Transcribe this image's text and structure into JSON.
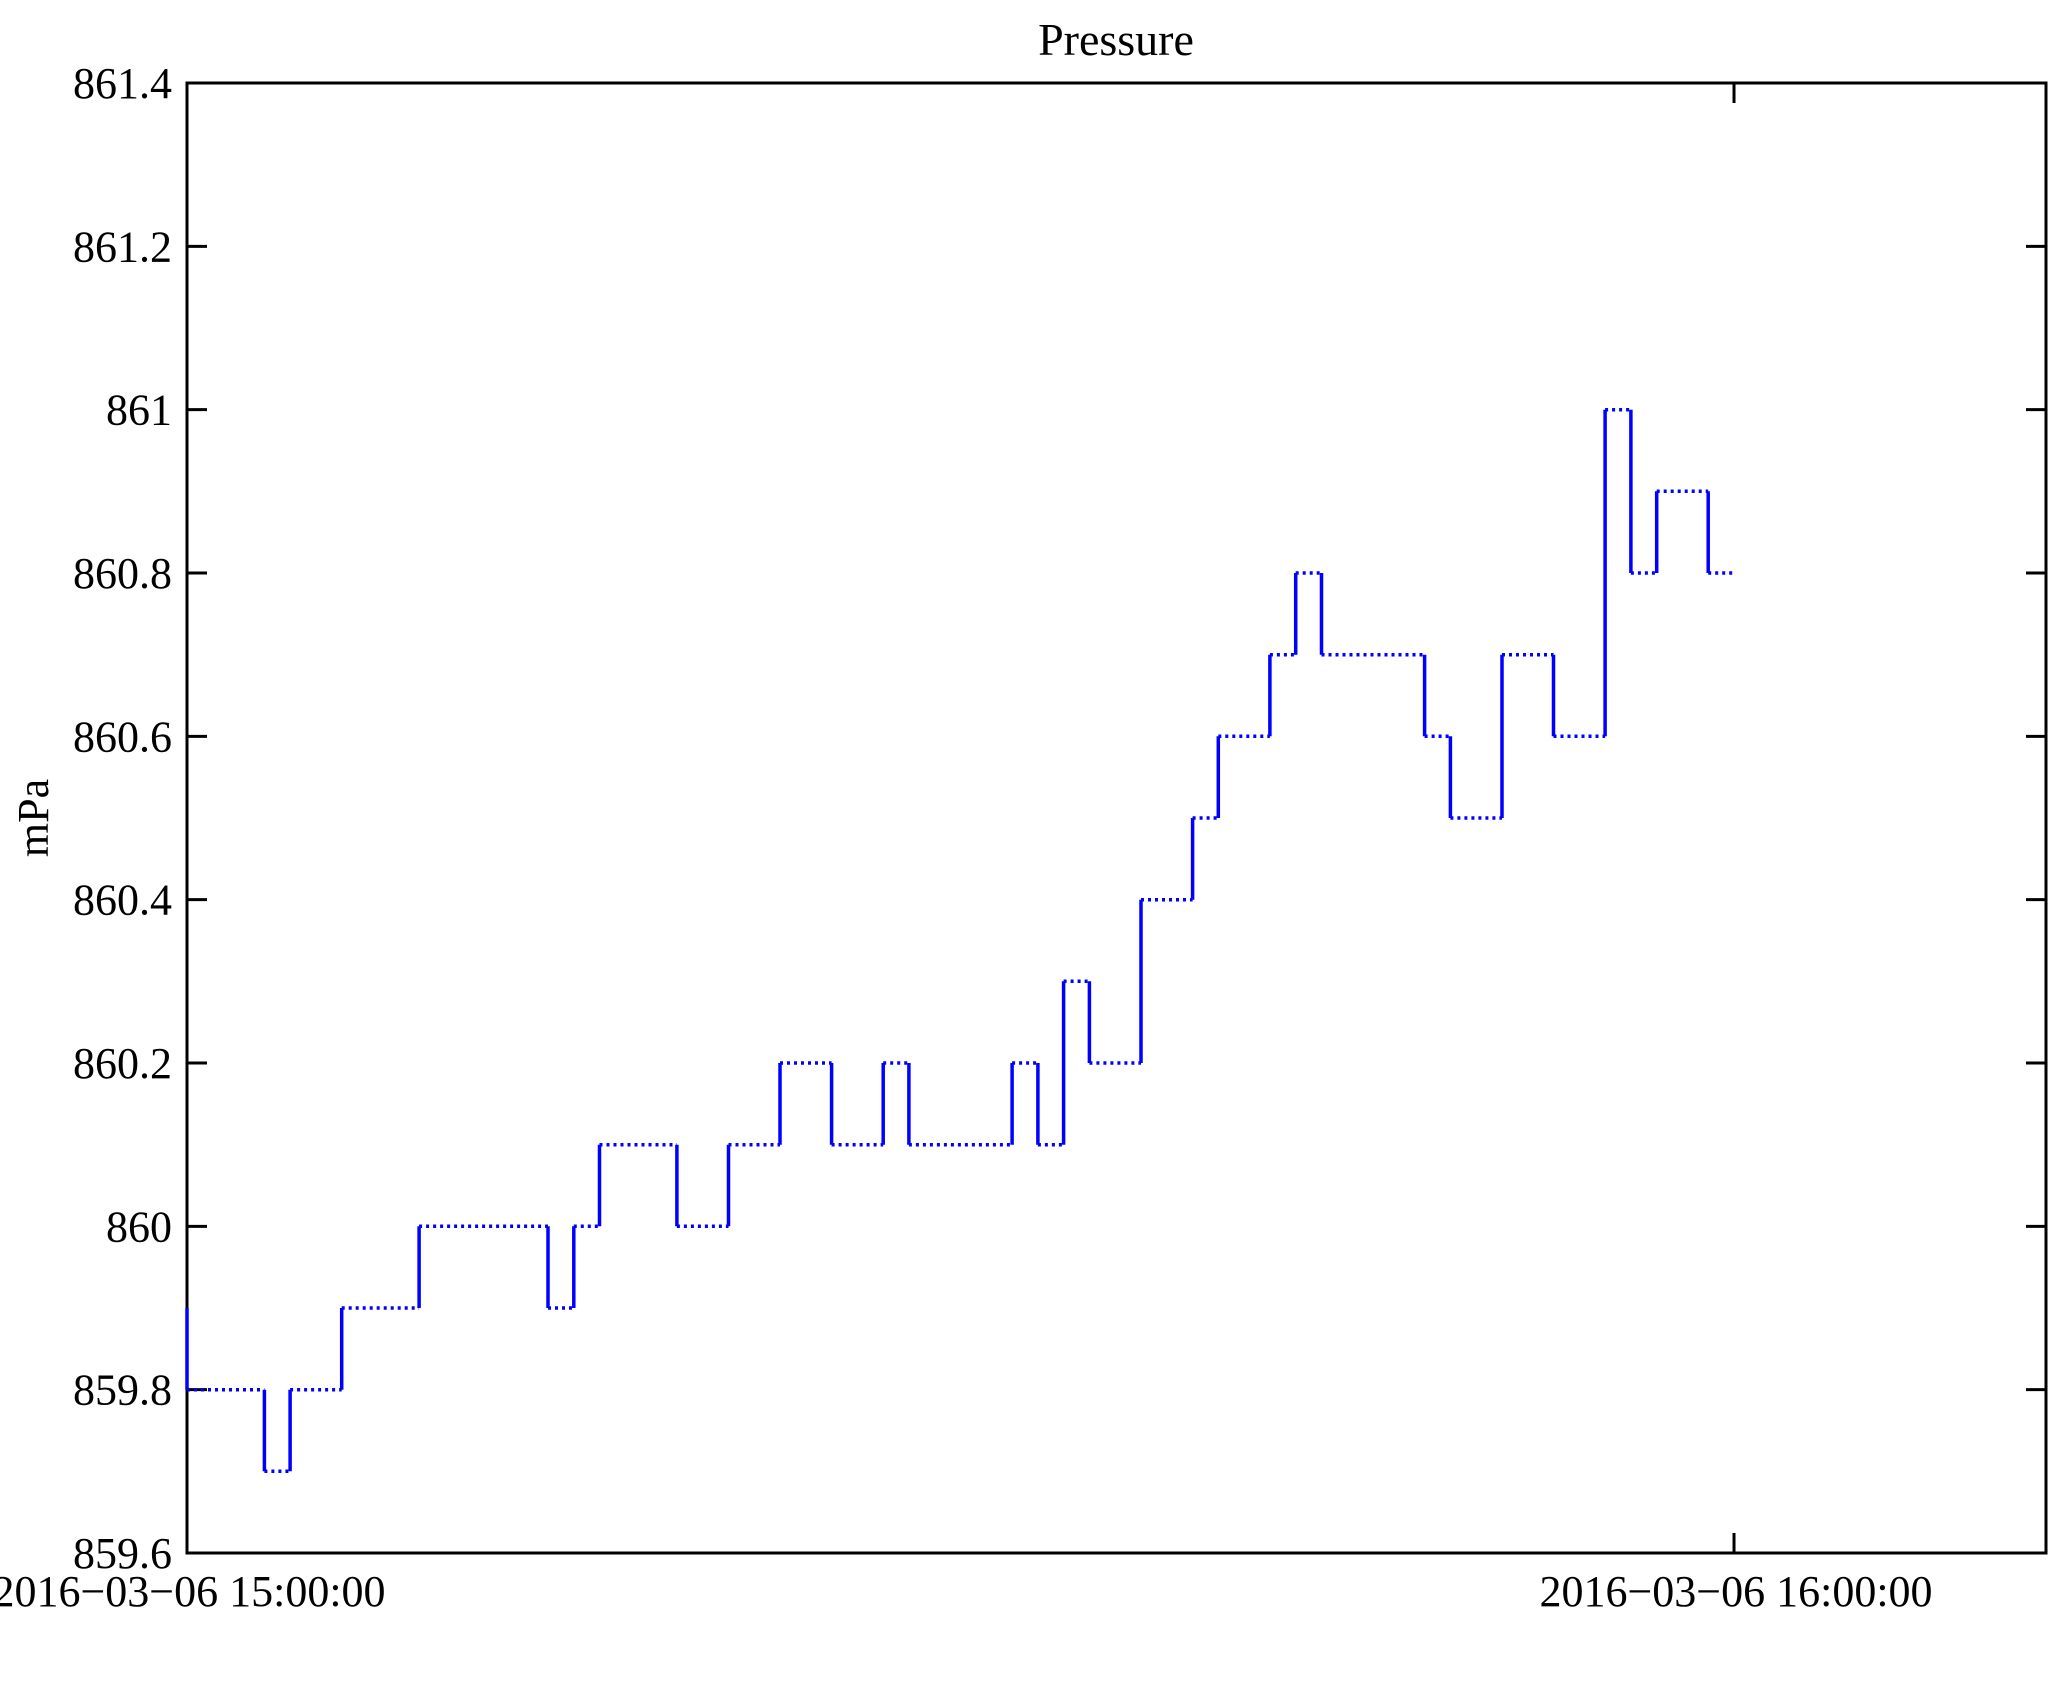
{
  "figure": {
    "background": "#ffffff"
  },
  "chart_data": {
    "type": "line",
    "title": "Pressure",
    "xlabel": "",
    "ylabel": "mPa",
    "line_color": "#0000ff",
    "frame_color": "#000000",
    "step_mode": "post",
    "x_unit": "minutes after 2016-03-06 15:00:00",
    "xlim_minutes": [
      0,
      72.1
    ],
    "ylim": [
      859.6,
      861.4
    ],
    "grid": false,
    "legend": "none",
    "yticks": [
      859.6,
      859.8,
      860,
      860.2,
      860.4,
      860.6,
      860.8,
      861,
      861.2,
      861.4
    ],
    "ytick_labels": [
      "859.6",
      "859.8",
      "860",
      "860.2",
      "860.4",
      "860.6",
      "860.8",
      "861",
      "861.2",
      "861.4"
    ],
    "xticks": [
      {
        "minute": 0,
        "label": "2016−03−06 15:00:00"
      },
      {
        "minute": 60,
        "label": "2016−03−06 16:00:00"
      }
    ],
    "end_minute": 60,
    "points": [
      [
        0,
        859.9
      ],
      [
        0,
        859.8
      ],
      [
        3,
        859.7
      ],
      [
        4,
        859.8
      ],
      [
        6,
        859.9
      ],
      [
        9,
        860
      ],
      [
        14,
        859.9
      ],
      [
        15,
        860
      ],
      [
        16,
        860.1
      ],
      [
        19,
        860
      ],
      [
        21,
        860.1
      ],
      [
        23,
        860.2
      ],
      [
        25,
        860.1
      ],
      [
        27,
        860.2
      ],
      [
        28,
        860.1
      ],
      [
        32,
        860.2
      ],
      [
        33,
        860.1
      ],
      [
        34,
        860.3
      ],
      [
        35,
        860.2
      ],
      [
        37,
        860.4
      ],
      [
        39,
        860.5
      ],
      [
        40,
        860.6
      ],
      [
        42,
        860.7
      ],
      [
        43,
        860.8
      ],
      [
        44,
        860.7
      ],
      [
        48,
        860.6
      ],
      [
        49,
        860.5
      ],
      [
        51,
        860.7
      ],
      [
        53,
        860.6
      ],
      [
        55,
        861
      ],
      [
        56,
        860.8
      ],
      [
        57,
        860.9
      ],
      [
        59,
        860.8
      ]
    ]
  }
}
